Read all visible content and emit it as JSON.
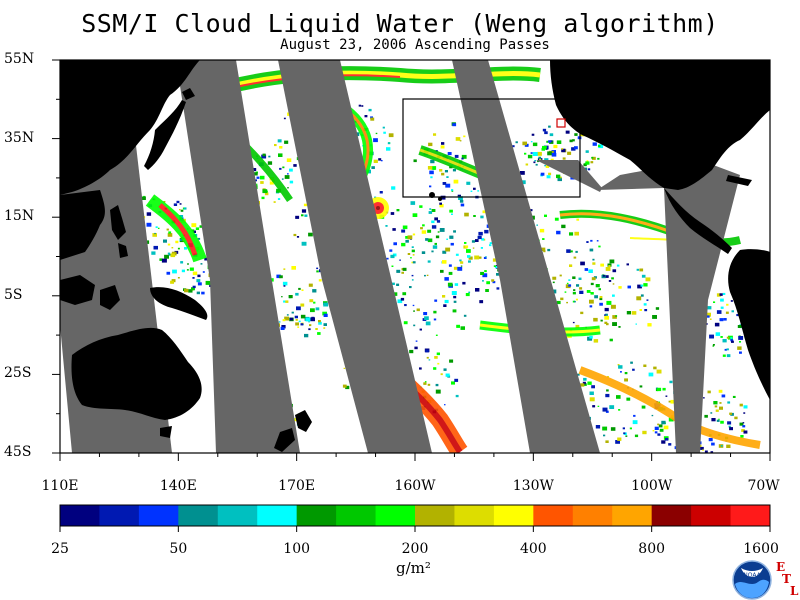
{
  "title": "SSM/I Cloud Liquid Water (Weng algorithm)",
  "subtitle": "August 23, 2006  Ascending Passes",
  "lat_labels": [
    "55N",
    "35N",
    "15N",
    "5S",
    "25S",
    "45S"
  ],
  "lon_labels": [
    "110E",
    "140E",
    "170E",
    "160W",
    "130W",
    "100W",
    "70W"
  ],
  "colorbar": {
    "colors": [
      "#00007f",
      "#0019b2",
      "#0033ff",
      "#009090",
      "#00c0c0",
      "#00ffff",
      "#009900",
      "#00c800",
      "#00ff00",
      "#b2b200",
      "#dddd00",
      "#ffff00",
      "#ff5500",
      "#ff8000",
      "#ffa500",
      "#8b0000",
      "#cc0000",
      "#ff1a1a"
    ],
    "tick_labels": [
      "25",
      "50",
      "100",
      "200",
      "400",
      "800",
      "1600"
    ],
    "units": "g/m²"
  },
  "map": {
    "lon_range": [
      110,
      290
    ],
    "lat_range": [
      -45,
      55
    ],
    "ocean_color": "#ffffff",
    "land_color": "#000000",
    "gap_color": "#666666"
  },
  "logo": {
    "text": "NOAA",
    "badge": [
      "E",
      "T",
      "L"
    ]
  }
}
